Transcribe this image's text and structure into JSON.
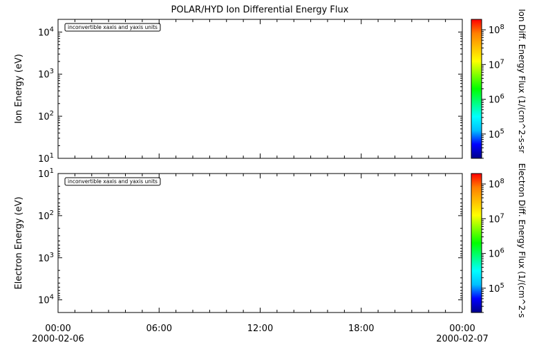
{
  "chart_data": {
    "title": "POLAR/HYD  Ion Differential Energy Flux",
    "panels": [
      {
        "type": "heatmap",
        "ylabel": "Ion Energy (eV)",
        "yscale": "log",
        "ylim": [
          10,
          20000
        ],
        "ytick_exponents": [
          1,
          2,
          3,
          4
        ],
        "ydirection": "normal",
        "message": "inconvertible xaxis and yaxis units",
        "colorbar": {
          "label": "Ion Diff. Energy Flux (1/(cm^2-s-sr",
          "scale": "log",
          "tick_exponents": [
            5,
            6,
            7,
            8
          ],
          "range_exponents": [
            4.3,
            8.3
          ]
        }
      },
      {
        "type": "heatmap",
        "ylabel": "Electron Energy (eV)",
        "yscale": "log",
        "ylim": [
          10,
          20000
        ],
        "ytick_exponents": [
          1,
          2,
          3,
          4
        ],
        "ydirection": "reversed",
        "message": "inconvertible xaxis and yaxis units",
        "colorbar": {
          "label": "Electron Diff. Energy Flux (1/(cm^2-s",
          "scale": "log",
          "tick_exponents": [
            5,
            6,
            7,
            8
          ],
          "range_exponents": [
            4.3,
            8.3
          ]
        }
      }
    ],
    "xaxis": {
      "range_hours": [
        0,
        24
      ],
      "major_hours": [
        0,
        6,
        12,
        18,
        24
      ],
      "minor_step_hours": 1,
      "tick_labels": [
        "00:00",
        "06:00",
        "12:00",
        "18:00",
        "00:00"
      ],
      "start_date": "2000-02-06",
      "end_date": "2000-02-07"
    },
    "colorscale": [
      "#00008b",
      "#0000ff",
      "#00bfff",
      "#00ffff",
      "#00ff7f",
      "#00ff00",
      "#7fff00",
      "#ffff00",
      "#ffbf00",
      "#ff7f00",
      "#ff0000"
    ]
  }
}
